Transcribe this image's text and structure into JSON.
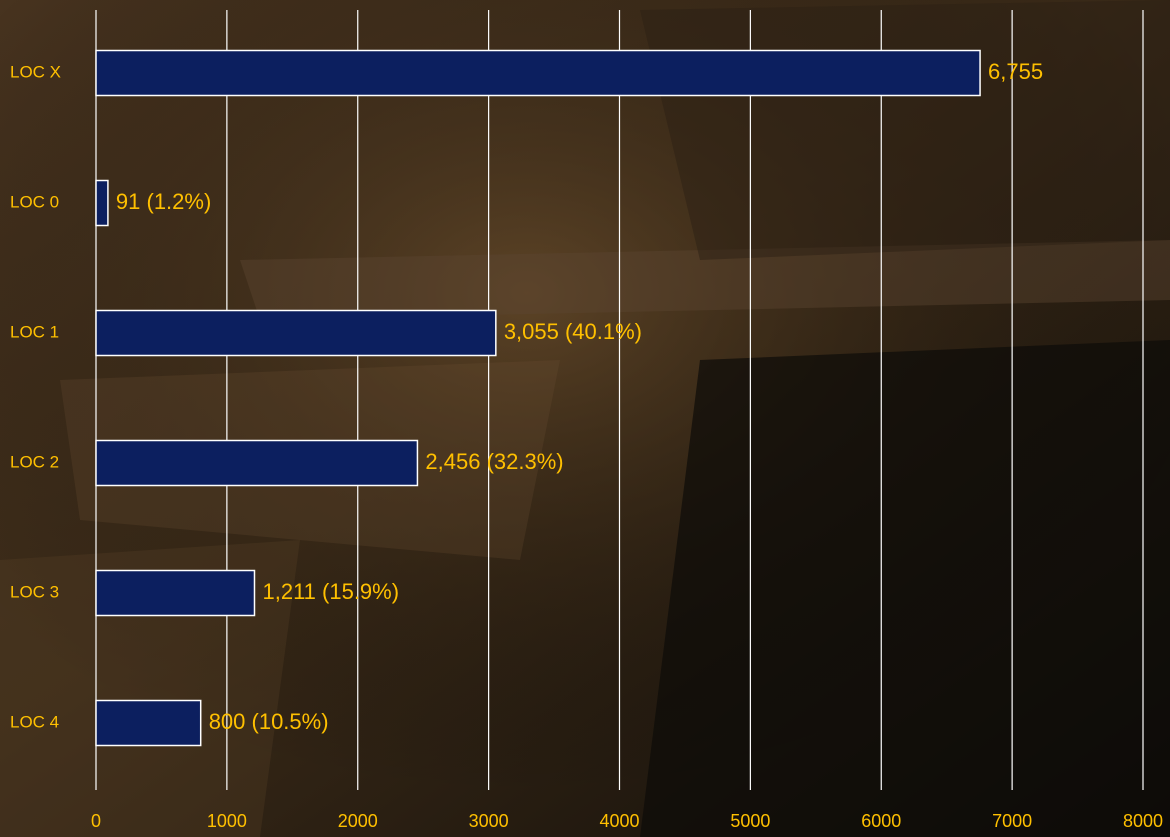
{
  "chart_data": {
    "type": "bar",
    "orientation": "horizontal",
    "categories": [
      "LOC X",
      "LOC 0",
      "LOC 1",
      "LOC 2",
      "LOC 3",
      "LOC 4"
    ],
    "values": [
      6755,
      91,
      3055,
      2456,
      1211,
      800
    ],
    "value_labels": [
      "6,755",
      "91 (1.2%)",
      "3,055 (40.1%)",
      "2,456 (32.3%)",
      "1,211 (15.9%)",
      "800 (10.5%)"
    ],
    "color": "#0c1f5f",
    "xlim": [
      0,
      8000
    ],
    "xticks": [
      0,
      1000,
      2000,
      3000,
      4000,
      5000,
      6000,
      7000,
      8000
    ],
    "grid": true
  }
}
